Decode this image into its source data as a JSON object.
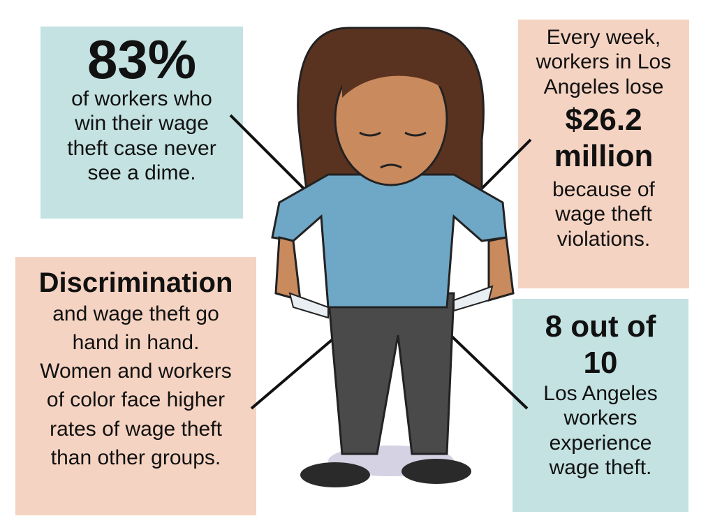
{
  "callouts": {
    "top_left": {
      "headline": "83%",
      "text": "of workers who win their wage theft case never see a dime."
    },
    "top_right": {
      "intro": "Every week, workers in Los Angeles lose",
      "headline": "$26.2 million",
      "text": "because of wage theft violations."
    },
    "bottom_left": {
      "headline": "Discrimination",
      "text": "and wage theft go hand in hand. Women and workers of color face higher rates of wage theft than other groups."
    },
    "bottom_right": {
      "headline": "8 out of 10",
      "text": "Los Angeles workers experience wage theft."
    }
  },
  "colors": {
    "teal_box": "#c3e2e1",
    "peach_box": "#f5d3c2",
    "shirt": "#6fa7c6",
    "pants": "#4a4a4a",
    "hair": "#5a3320",
    "skin": "#c98a5e"
  }
}
